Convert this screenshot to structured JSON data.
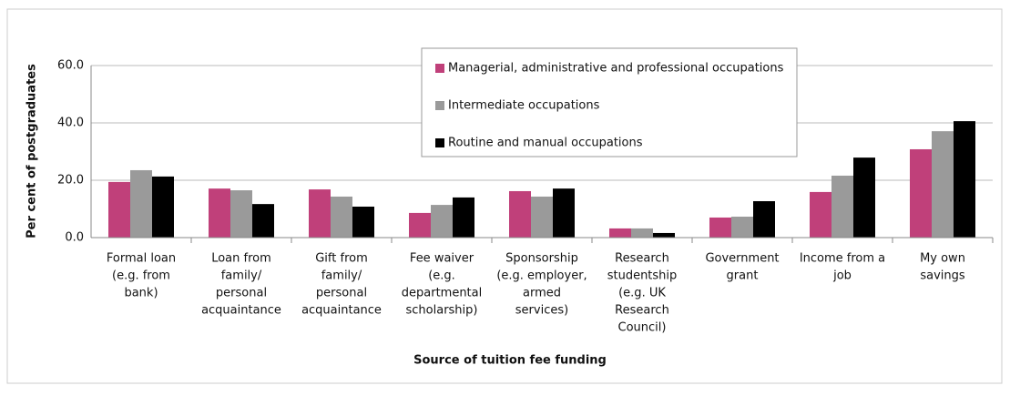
{
  "chart_data": {
    "type": "bar",
    "y_label": "Per cent of postgraduates",
    "x_label": "Source of tuition fee funding",
    "categories": [
      [
        "Formal loan",
        "(e.g. from",
        "bank)"
      ],
      [
        "Loan from",
        "family/",
        "personal",
        "acquaintance"
      ],
      [
        "Gift from",
        "family/",
        "personal",
        "acquaintance"
      ],
      [
        "Fee waiver",
        "(e.g.",
        "departmental",
        "scholarship)"
      ],
      [
        "Sponsorship",
        "(e.g. employer,",
        "armed",
        "services)"
      ],
      [
        "Research",
        "studentship",
        "(e.g. UK",
        "Research",
        "Council)"
      ],
      [
        "Government",
        "grant"
      ],
      [
        "Income from a",
        "job"
      ],
      [
        "My own",
        "savings"
      ]
    ],
    "series": [
      {
        "name": "Managerial, administrative and professional occupations",
        "color": "#c0407a",
        "values": [
          19.4,
          17.1,
          16.8,
          8.6,
          16.2,
          3.2,
          7.0,
          15.9,
          30.8
        ]
      },
      {
        "name": "Intermediate occupations",
        "color": "#9a9a9a",
        "values": [
          23.5,
          16.5,
          14.3,
          11.4,
          14.3,
          3.2,
          7.3,
          21.6,
          37.1
        ]
      },
      {
        "name": "Routine and manual occupations",
        "color": "#000000",
        "values": [
          21.3,
          11.7,
          10.8,
          14.0,
          17.1,
          1.6,
          12.7,
          27.9,
          40.6
        ]
      }
    ],
    "ylim": [
      0,
      60
    ],
    "yticks": [
      {
        "value": 0,
        "label": "0.0"
      },
      {
        "value": 20,
        "label": "20.0"
      },
      {
        "value": 40,
        "label": "40.0"
      },
      {
        "value": 60,
        "label": "60.0"
      }
    ],
    "grid": true
  }
}
